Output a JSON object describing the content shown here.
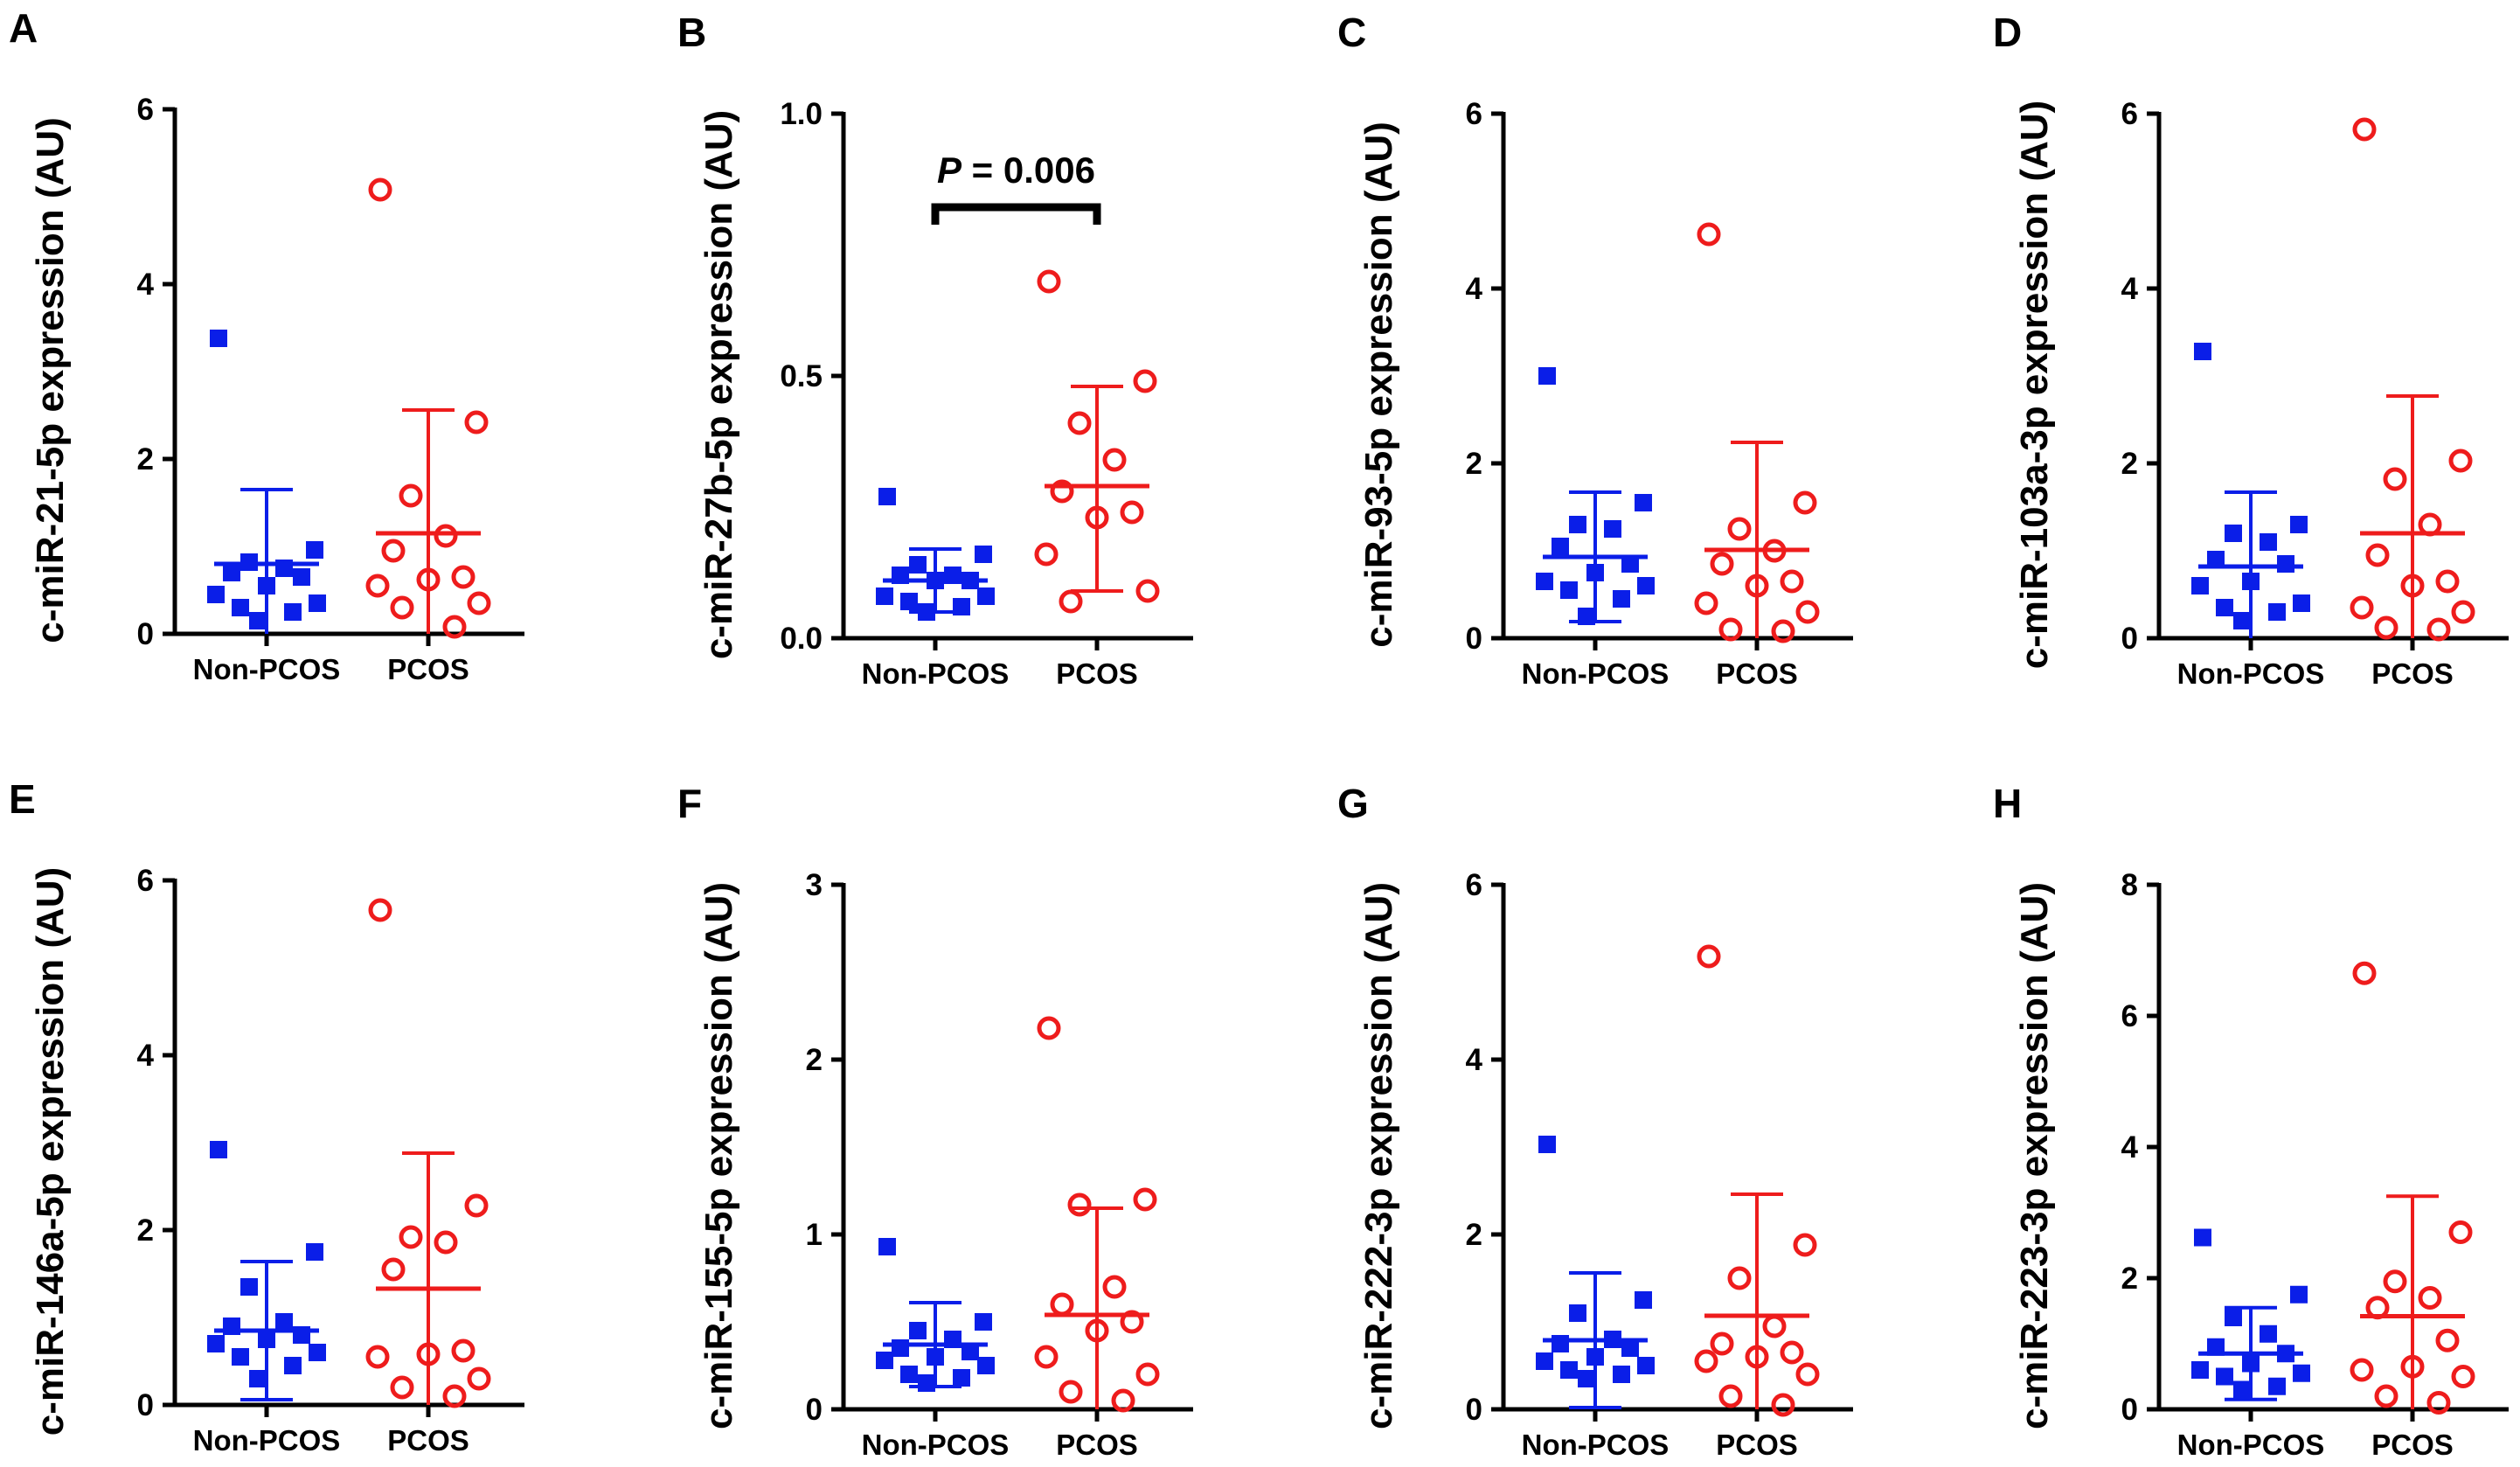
{
  "colors": {
    "non_pcos": "#0a1ee8",
    "pcos": "#ee1c1c",
    "axis": "#000000"
  },
  "chart_data": [
    {
      "type": "scatter",
      "panel": "A",
      "ylabel": "c-miR-21-5p expression (AU)",
      "categories": [
        "Non-PCOS",
        "PCOS"
      ],
      "ylim": [
        0,
        6
      ],
      "yticks": [
        "0",
        "2",
        "4",
        "6"
      ],
      "series": [
        {
          "name": "Non-PCOS",
          "marker": "filled-square",
          "values": [
            3.38,
            0.96,
            0.82,
            0.75,
            0.7,
            0.65,
            0.55,
            0.45,
            0.35,
            0.3,
            0.25,
            0.15
          ],
          "mean": 0.8,
          "sd_upper": 1.65,
          "sd_lower": 0.0
        },
        {
          "name": "PCOS",
          "marker": "open-circle",
          "values": [
            5.08,
            2.42,
            1.58,
            1.12,
            0.95,
            0.65,
            0.62,
            0.55,
            0.35,
            0.3,
            0.08
          ],
          "mean": 1.15,
          "sd_upper": 2.56,
          "sd_lower": 0.0
        }
      ]
    },
    {
      "type": "scatter",
      "panel": "B",
      "ylabel": "c-miR-27b-5p expression (AU)",
      "categories": [
        "Non-PCOS",
        "PCOS"
      ],
      "ylim": [
        0,
        1
      ],
      "yticks": [
        "0.0",
        "0.5",
        "1.0"
      ],
      "significance": {
        "p_italic": "P",
        "text": "= 0.006"
      },
      "series": [
        {
          "name": "Non-PCOS",
          "marker": "filled-square",
          "values": [
            0.27,
            0.16,
            0.14,
            0.12,
            0.12,
            0.11,
            0.11,
            0.08,
            0.08,
            0.07,
            0.06,
            0.05
          ],
          "mean": 0.11,
          "sd_upper": 0.17,
          "sd_lower": 0.05
        },
        {
          "name": "PCOS",
          "marker": "open-circle",
          "values": [
            0.68,
            0.49,
            0.41,
            0.34,
            0.28,
            0.24,
            0.23,
            0.16,
            0.09,
            0.07
          ],
          "mean": 0.29,
          "sd_upper": 0.48,
          "sd_lower": 0.09
        }
      ]
    },
    {
      "type": "scatter",
      "panel": "C",
      "ylabel": "c-miR-93-5p expression (AU)",
      "categories": [
        "Non-PCOS",
        "PCOS"
      ],
      "ylim": [
        0,
        6
      ],
      "yticks": [
        "0",
        "2",
        "4",
        "6"
      ],
      "series": [
        {
          "name": "Non-PCOS",
          "marker": "filled-square",
          "values": [
            3.0,
            1.55,
            1.3,
            1.25,
            1.05,
            0.85,
            0.75,
            0.65,
            0.6,
            0.55,
            0.45,
            0.25
          ],
          "mean": 0.93,
          "sd_upper": 1.67,
          "sd_lower": 0.19
        },
        {
          "name": "PCOS",
          "marker": "open-circle",
          "values": [
            4.62,
            1.55,
            1.25,
            1.0,
            0.85,
            0.65,
            0.6,
            0.4,
            0.3,
            0.1,
            0.08
          ],
          "mean": 1.01,
          "sd_upper": 2.24,
          "sd_lower": 0.0
        }
      ]
    },
    {
      "type": "scatter",
      "panel": "D",
      "ylabel": "c-miR-103a-3p expression (AU)",
      "categories": [
        "Non-PCOS",
        "PCOS"
      ],
      "ylim": [
        0,
        6
      ],
      "yticks": [
        "0",
        "2",
        "4",
        "6"
      ],
      "series": [
        {
          "name": "Non-PCOS",
          "marker": "filled-square",
          "values": [
            3.28,
            1.3,
            1.2,
            1.1,
            0.9,
            0.85,
            0.65,
            0.6,
            0.4,
            0.35,
            0.3,
            0.2
          ],
          "mean": 0.82,
          "sd_upper": 1.67,
          "sd_lower": 0.0
        },
        {
          "name": "PCOS",
          "marker": "open-circle",
          "values": [
            5.82,
            2.03,
            1.82,
            1.3,
            0.95,
            0.65,
            0.6,
            0.35,
            0.3,
            0.12,
            0.1
          ],
          "mean": 1.2,
          "sd_upper": 2.77,
          "sd_lower": 0.0
        }
      ]
    },
    {
      "type": "scatter",
      "panel": "E",
      "ylabel": "c-miR-146a-5p expression (AU)",
      "categories": [
        "Non-PCOS",
        "PCOS"
      ],
      "ylim": [
        0,
        6
      ],
      "yticks": [
        "0",
        "2",
        "4",
        "6"
      ],
      "series": [
        {
          "name": "Non-PCOS",
          "marker": "filled-square",
          "values": [
            2.92,
            1.75,
            1.35,
            0.95,
            0.9,
            0.8,
            0.75,
            0.7,
            0.6,
            0.55,
            0.45,
            0.3
          ],
          "mean": 0.85,
          "sd_upper": 1.64,
          "sd_lower": 0.06
        },
        {
          "name": "PCOS",
          "marker": "open-circle",
          "values": [
            5.66,
            2.28,
            1.92,
            1.86,
            1.55,
            0.62,
            0.58,
            0.55,
            0.3,
            0.2,
            0.1
          ],
          "mean": 1.33,
          "sd_upper": 2.88,
          "sd_lower": 0.0
        }
      ]
    },
    {
      "type": "scatter",
      "panel": "F",
      "ylabel": "c-miR-155-5p expression (AU)",
      "categories": [
        "Non-PCOS",
        "PCOS"
      ],
      "ylim": [
        0,
        3
      ],
      "yticks": [
        "0",
        "1",
        "2",
        "3"
      ],
      "series": [
        {
          "name": "Non-PCOS",
          "marker": "filled-square",
          "values": [
            0.93,
            0.5,
            0.45,
            0.4,
            0.35,
            0.33,
            0.3,
            0.28,
            0.25,
            0.2,
            0.18,
            0.15
          ],
          "mean": 0.37,
          "sd_upper": 0.61,
          "sd_lower": 0.13
        },
        {
          "name": "PCOS",
          "marker": "open-circle",
          "values": [
            2.18,
            1.2,
            1.17,
            0.7,
            0.6,
            0.5,
            0.45,
            0.3,
            0.2,
            0.1,
            0.05
          ],
          "mean": 0.54,
          "sd_upper": 1.15,
          "sd_lower": 0.0
        }
      ]
    },
    {
      "type": "scatter",
      "panel": "G",
      "ylabel": "c-miR-222-3p expression (AU)",
      "categories": [
        "Non-PCOS",
        "PCOS"
      ],
      "ylim": [
        0,
        6
      ],
      "yticks": [
        "0",
        "2",
        "4",
        "6"
      ],
      "series": [
        {
          "name": "Non-PCOS",
          "marker": "filled-square",
          "values": [
            3.03,
            1.25,
            1.1,
            0.8,
            0.75,
            0.7,
            0.6,
            0.55,
            0.5,
            0.45,
            0.4,
            0.35
          ],
          "mean": 0.79,
          "sd_upper": 1.56,
          "sd_lower": 0.02
        },
        {
          "name": "PCOS",
          "marker": "open-circle",
          "values": [
            5.18,
            1.88,
            1.5,
            0.95,
            0.75,
            0.65,
            0.6,
            0.55,
            0.4,
            0.15,
            0.05
          ],
          "mean": 1.07,
          "sd_upper": 2.46,
          "sd_lower": 0.0
        }
      ]
    },
    {
      "type": "scatter",
      "panel": "H",
      "ylabel": "c-miR-223-3p expression (AU)",
      "categories": [
        "Non-PCOS",
        "PCOS"
      ],
      "ylim": [
        0,
        8
      ],
      "yticks": [
        "0",
        "2",
        "4",
        "6",
        "8"
      ],
      "series": [
        {
          "name": "Non-PCOS",
          "marker": "filled-square",
          "values": [
            2.62,
            1.75,
            1.4,
            1.15,
            0.95,
            0.85,
            0.7,
            0.6,
            0.55,
            0.5,
            0.35,
            0.3
          ],
          "mean": 0.85,
          "sd_upper": 1.55,
          "sd_lower": 0.15
        },
        {
          "name": "PCOS",
          "marker": "open-circle",
          "values": [
            6.65,
            2.7,
            1.95,
            1.7,
            1.55,
            1.05,
            0.65,
            0.6,
            0.5,
            0.2,
            0.1
          ],
          "mean": 1.42,
          "sd_upper": 3.25,
          "sd_lower": 0.0
        }
      ]
    }
  ]
}
